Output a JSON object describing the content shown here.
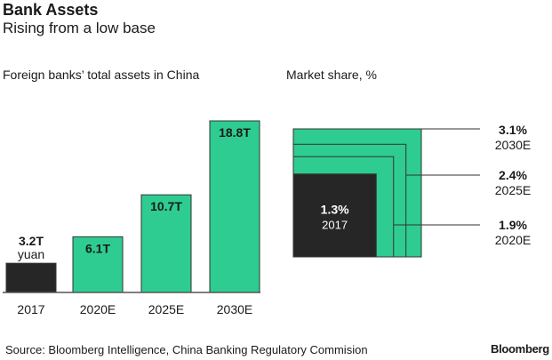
{
  "header": {
    "title": "Bank Assets",
    "subtitle": "Rising from a low base"
  },
  "footer": {
    "source": "Source: Bloomberg Intelligence, China Banking Regulatory Commision",
    "logo": "Bloomberg"
  },
  "colors": {
    "green": "#2ecc91",
    "dark": "#262626",
    "line": "#333333"
  },
  "chart_data": [
    {
      "type": "bar",
      "title": "Foreign banks’ total assets in China",
      "unit": "trillion yuan",
      "categories": [
        "2017",
        "2020E",
        "2025E",
        "2030E"
      ],
      "values": [
        3.2,
        6.1,
        10.7,
        18.8
      ],
      "labels": [
        "3.2T",
        "6.1T",
        "10.7T",
        "18.8T"
      ],
      "first_label_unit": "yuan",
      "ylim": [
        0,
        18.8
      ]
    },
    {
      "type": "nested-squares",
      "title": "Market share, %",
      "categories": [
        "2017",
        "2020E",
        "2025E",
        "2030E"
      ],
      "values": [
        1.3,
        1.9,
        2.4,
        3.1
      ],
      "labels": [
        "1.3%",
        "1.9%",
        "2.4%",
        "3.1%"
      ]
    }
  ]
}
